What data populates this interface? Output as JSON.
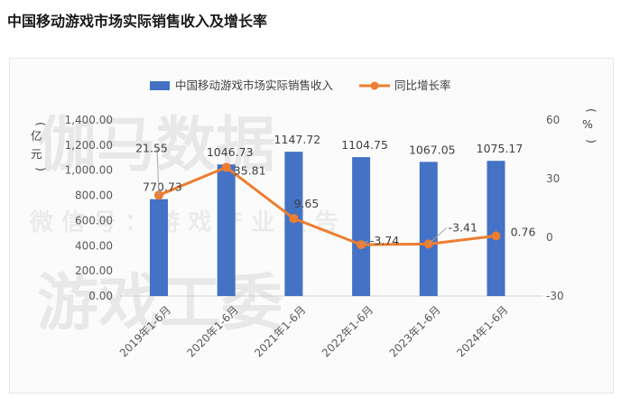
{
  "page": {
    "title": "中国移动游戏市场实际销售收入及增长率"
  },
  "chart_data": {
    "type": "bar",
    "title": "中国移动游戏市场实际销售收入及增长率",
    "categories": [
      "2019年1-6月",
      "2020年1-6月",
      "2021年1-6月",
      "2022年1-6月",
      "2023年1-6月",
      "2024年1-6月"
    ],
    "series": [
      {
        "name": "中国移动游戏市场实际销售收入",
        "type": "bar",
        "axis": "left",
        "unit": "亿元",
        "values": [
          770.73,
          1046.73,
          1147.72,
          1104.75,
          1067.05,
          1075.17
        ],
        "labels": [
          "770.73",
          "1046.73",
          "1147.72",
          "1104.75",
          "1067.05",
          "1075.17"
        ],
        "color": "#4472C4"
      },
      {
        "name": "同比增长率",
        "type": "line",
        "axis": "right",
        "unit": "%",
        "values": [
          21.55,
          35.81,
          9.65,
          -3.74,
          -3.41,
          0.76
        ],
        "labels": [
          "21.55",
          "35.81",
          "9.65",
          "-3.74",
          "-3.41",
          "0.76"
        ],
        "color": "#ED7D31"
      }
    ],
    "left_axis": {
      "label": "亿元",
      "ylim": [
        0,
        1400
      ],
      "ticks": [
        "0.00",
        "200.00",
        "400.00",
        "600.00",
        "800.00",
        "1,000.00",
        "1,200.00",
        "1,400.00"
      ]
    },
    "right_axis": {
      "label": "%",
      "ylim": [
        -30,
        60
      ],
      "ticks": [
        "-30",
        "0",
        "30",
        "60"
      ]
    },
    "legend": {
      "position": "top",
      "entries": [
        "中国移动游戏市场实际销售收入",
        "同比增长率"
      ]
    },
    "grid": false
  },
  "watermark": {
    "big_1": "伽马数据",
    "small": "微 信 号 ： 游 戏 产 业 报 告",
    "big_2": "游戏工委"
  }
}
